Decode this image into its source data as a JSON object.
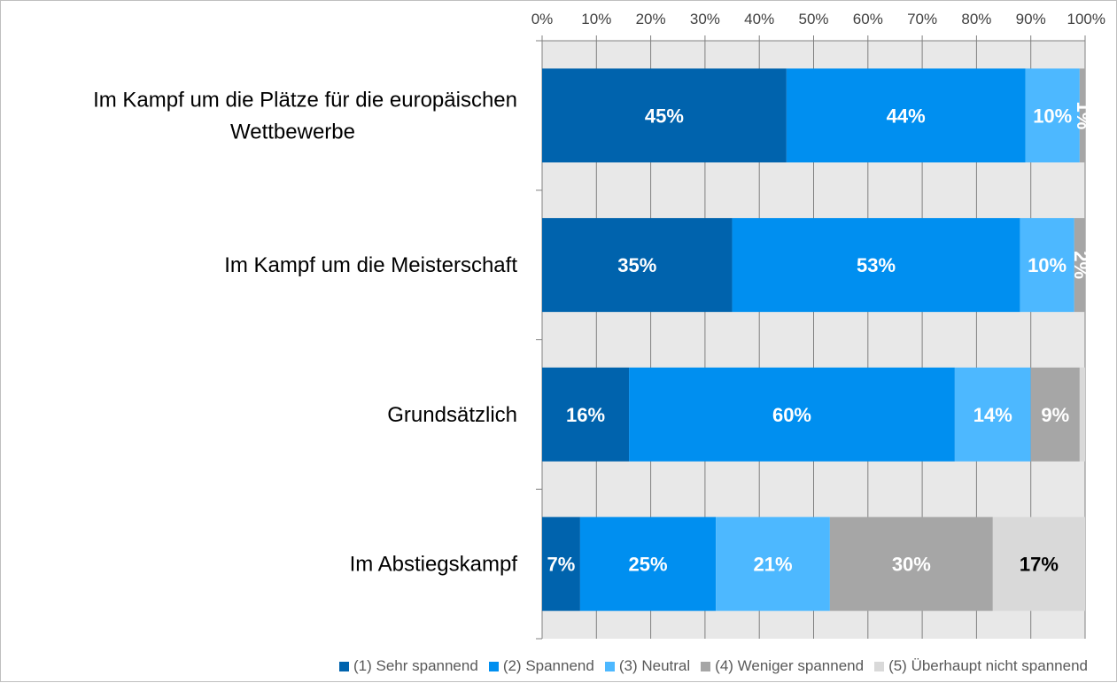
{
  "chart_data": {
    "type": "bar",
    "orientation": "horizontal",
    "stacked": "percent",
    "categories": [
      [
        "Im Kampf um die Plätze für die europäischen",
        "Wettbewerbe"
      ],
      [
        "Im Kampf um die Meisterschaft"
      ],
      [
        "Grundsätzlich"
      ],
      [
        "Im Abstiegskampf"
      ]
    ],
    "x_ticks": [
      "0%",
      "10%",
      "20%",
      "30%",
      "40%",
      "50%",
      "60%",
      "70%",
      "80%",
      "90%",
      "100%"
    ],
    "xlim": [
      0,
      100
    ],
    "x_axis_position": "top",
    "grid": true,
    "legend_position": "bottom-right",
    "series": [
      {
        "name": "(1) Sehr spannend",
        "color": "#0063ad",
        "values": [
          45,
          35,
          16,
          7
        ],
        "labels": [
          "45%",
          "35%",
          "16%",
          "7%"
        ]
      },
      {
        "name": "(2) Spannend",
        "color": "#008ff0",
        "values": [
          44,
          53,
          60,
          25
        ],
        "labels": [
          "44%",
          "53%",
          "60%",
          "25%"
        ]
      },
      {
        "name": "(3) Neutral",
        "color": "#4db8ff",
        "values": [
          10,
          10,
          14,
          21
        ],
        "labels": [
          "10%",
          "10%",
          "14%",
          "21%"
        ]
      },
      {
        "name": "(4) Weniger spannend",
        "color": "#a6a6a6",
        "values": [
          1,
          2,
          9,
          30
        ],
        "labels": [
          "1%",
          "2%",
          "9%",
          "30%"
        ]
      },
      {
        "name": "(5) Überhaupt nicht spannend",
        "color": "#d9d9d9",
        "values": [
          0,
          0,
          1,
          17
        ],
        "labels": [
          "",
          "",
          "",
          "17%"
        ]
      }
    ]
  }
}
